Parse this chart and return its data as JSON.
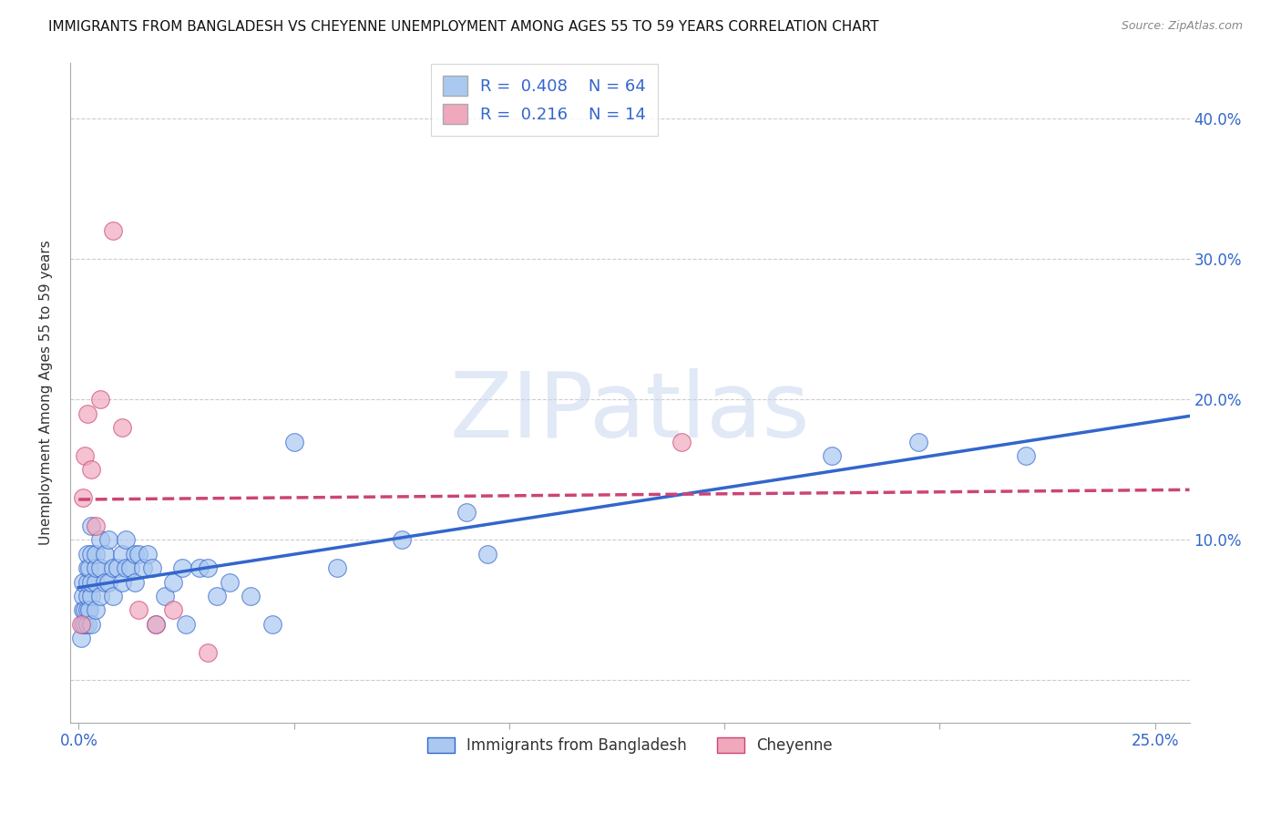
{
  "title": "IMMIGRANTS FROM BANGLADESH VS CHEYENNE UNEMPLOYMENT AMONG AGES 55 TO 59 YEARS CORRELATION CHART",
  "source": "Source: ZipAtlas.com",
  "xlabel_ticks_show": [
    "0.0%",
    "",
    "",
    "",
    "",
    "25.0%"
  ],
  "xlabel_values": [
    0,
    0.05,
    0.1,
    0.15,
    0.2,
    0.25
  ],
  "ylabel_ticks": [
    "",
    "10.0%",
    "20.0%",
    "30.0%",
    "40.0%"
  ],
  "ylabel_values": [
    0,
    0.1,
    0.2,
    0.3,
    0.4
  ],
  "xlim": [
    -0.002,
    0.258
  ],
  "ylim": [
    -0.03,
    0.44
  ],
  "ylabel": "Unemployment Among Ages 55 to 59 years",
  "r_bangladesh": 0.408,
  "n_bangladesh": 64,
  "r_cheyenne": 0.216,
  "n_cheyenne": 14,
  "color_bangladesh": "#aac8f0",
  "color_cheyenne": "#f0a8bc",
  "line_color_bangladesh": "#3366cc",
  "line_color_cheyenne": "#cc4477",
  "watermark_text": "ZIPatlas",
  "legend_label_bangladesh": "Immigrants from Bangladesh",
  "legend_label_cheyenne": "Cheyenne",
  "bangladesh_x": [
    0.0005,
    0.001,
    0.001,
    0.001,
    0.001,
    0.0015,
    0.0015,
    0.002,
    0.002,
    0.002,
    0.002,
    0.002,
    0.002,
    0.0025,
    0.0025,
    0.003,
    0.003,
    0.003,
    0.003,
    0.003,
    0.004,
    0.004,
    0.004,
    0.004,
    0.005,
    0.005,
    0.005,
    0.006,
    0.006,
    0.007,
    0.007,
    0.008,
    0.008,
    0.009,
    0.01,
    0.01,
    0.011,
    0.011,
    0.012,
    0.013,
    0.013,
    0.014,
    0.015,
    0.016,
    0.017,
    0.018,
    0.02,
    0.022,
    0.024,
    0.025,
    0.028,
    0.03,
    0.032,
    0.035,
    0.04,
    0.045,
    0.05,
    0.06,
    0.075,
    0.09,
    0.095,
    0.175,
    0.195,
    0.22
  ],
  "bangladesh_y": [
    0.03,
    0.04,
    0.05,
    0.06,
    0.07,
    0.04,
    0.05,
    0.04,
    0.05,
    0.06,
    0.07,
    0.08,
    0.09,
    0.05,
    0.08,
    0.04,
    0.06,
    0.07,
    0.09,
    0.11,
    0.05,
    0.07,
    0.08,
    0.09,
    0.06,
    0.08,
    0.1,
    0.07,
    0.09,
    0.07,
    0.1,
    0.06,
    0.08,
    0.08,
    0.07,
    0.09,
    0.08,
    0.1,
    0.08,
    0.07,
    0.09,
    0.09,
    0.08,
    0.09,
    0.08,
    0.04,
    0.06,
    0.07,
    0.08,
    0.04,
    0.08,
    0.08,
    0.06,
    0.07,
    0.06,
    0.04,
    0.17,
    0.08,
    0.1,
    0.12,
    0.09,
    0.16,
    0.17,
    0.16
  ],
  "cheyenne_x": [
    0.0005,
    0.001,
    0.0015,
    0.002,
    0.003,
    0.004,
    0.005,
    0.008,
    0.01,
    0.014,
    0.018,
    0.022,
    0.03,
    0.14
  ],
  "cheyenne_y": [
    0.04,
    0.13,
    0.16,
    0.19,
    0.15,
    0.11,
    0.2,
    0.32,
    0.18,
    0.05,
    0.04,
    0.05,
    0.02,
    0.17
  ]
}
